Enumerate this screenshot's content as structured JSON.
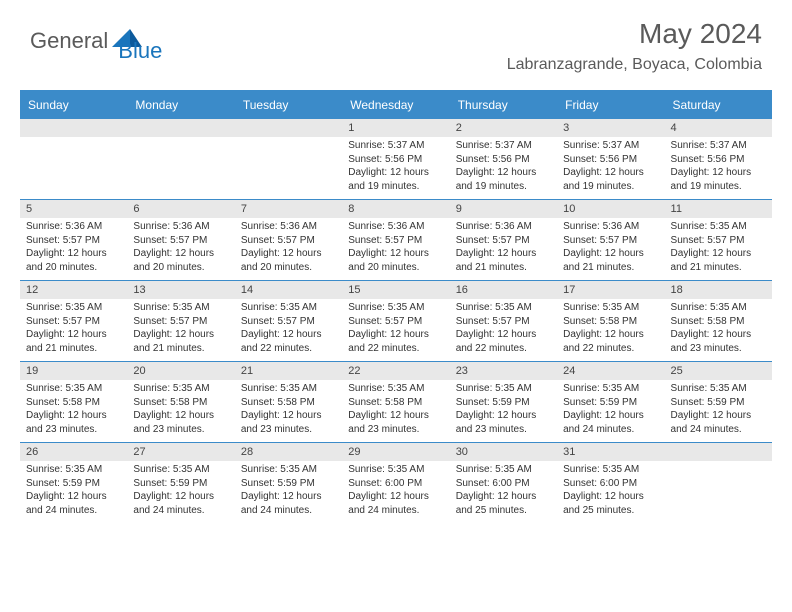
{
  "brand": {
    "part1": "General",
    "part2": "Blue"
  },
  "title": "May 2024",
  "location": "Labranzagrande, Boyaca, Colombia",
  "colors": {
    "header_bg": "#3b8bc9",
    "header_text": "#ffffff",
    "daynum_bg": "#e8e8e8",
    "text": "#333333",
    "brand_gray": "#5a5a5a",
    "brand_blue": "#1a75bc"
  },
  "day_names": [
    "Sunday",
    "Monday",
    "Tuesday",
    "Wednesday",
    "Thursday",
    "Friday",
    "Saturday"
  ],
  "weeks": [
    [
      {
        "n": "",
        "sunrise": "",
        "sunset": "",
        "daylight": ""
      },
      {
        "n": "",
        "sunrise": "",
        "sunset": "",
        "daylight": ""
      },
      {
        "n": "",
        "sunrise": "",
        "sunset": "",
        "daylight": ""
      },
      {
        "n": "1",
        "sunrise": "Sunrise: 5:37 AM",
        "sunset": "Sunset: 5:56 PM",
        "daylight": "Daylight: 12 hours and 19 minutes."
      },
      {
        "n": "2",
        "sunrise": "Sunrise: 5:37 AM",
        "sunset": "Sunset: 5:56 PM",
        "daylight": "Daylight: 12 hours and 19 minutes."
      },
      {
        "n": "3",
        "sunrise": "Sunrise: 5:37 AM",
        "sunset": "Sunset: 5:56 PM",
        "daylight": "Daylight: 12 hours and 19 minutes."
      },
      {
        "n": "4",
        "sunrise": "Sunrise: 5:37 AM",
        "sunset": "Sunset: 5:56 PM",
        "daylight": "Daylight: 12 hours and 19 minutes."
      }
    ],
    [
      {
        "n": "5",
        "sunrise": "Sunrise: 5:36 AM",
        "sunset": "Sunset: 5:57 PM",
        "daylight": "Daylight: 12 hours and 20 minutes."
      },
      {
        "n": "6",
        "sunrise": "Sunrise: 5:36 AM",
        "sunset": "Sunset: 5:57 PM",
        "daylight": "Daylight: 12 hours and 20 minutes."
      },
      {
        "n": "7",
        "sunrise": "Sunrise: 5:36 AM",
        "sunset": "Sunset: 5:57 PM",
        "daylight": "Daylight: 12 hours and 20 minutes."
      },
      {
        "n": "8",
        "sunrise": "Sunrise: 5:36 AM",
        "sunset": "Sunset: 5:57 PM",
        "daylight": "Daylight: 12 hours and 20 minutes."
      },
      {
        "n": "9",
        "sunrise": "Sunrise: 5:36 AM",
        "sunset": "Sunset: 5:57 PM",
        "daylight": "Daylight: 12 hours and 21 minutes."
      },
      {
        "n": "10",
        "sunrise": "Sunrise: 5:36 AM",
        "sunset": "Sunset: 5:57 PM",
        "daylight": "Daylight: 12 hours and 21 minutes."
      },
      {
        "n": "11",
        "sunrise": "Sunrise: 5:35 AM",
        "sunset": "Sunset: 5:57 PM",
        "daylight": "Daylight: 12 hours and 21 minutes."
      }
    ],
    [
      {
        "n": "12",
        "sunrise": "Sunrise: 5:35 AM",
        "sunset": "Sunset: 5:57 PM",
        "daylight": "Daylight: 12 hours and 21 minutes."
      },
      {
        "n": "13",
        "sunrise": "Sunrise: 5:35 AM",
        "sunset": "Sunset: 5:57 PM",
        "daylight": "Daylight: 12 hours and 21 minutes."
      },
      {
        "n": "14",
        "sunrise": "Sunrise: 5:35 AM",
        "sunset": "Sunset: 5:57 PM",
        "daylight": "Daylight: 12 hours and 22 minutes."
      },
      {
        "n": "15",
        "sunrise": "Sunrise: 5:35 AM",
        "sunset": "Sunset: 5:57 PM",
        "daylight": "Daylight: 12 hours and 22 minutes."
      },
      {
        "n": "16",
        "sunrise": "Sunrise: 5:35 AM",
        "sunset": "Sunset: 5:57 PM",
        "daylight": "Daylight: 12 hours and 22 minutes."
      },
      {
        "n": "17",
        "sunrise": "Sunrise: 5:35 AM",
        "sunset": "Sunset: 5:58 PM",
        "daylight": "Daylight: 12 hours and 22 minutes."
      },
      {
        "n": "18",
        "sunrise": "Sunrise: 5:35 AM",
        "sunset": "Sunset: 5:58 PM",
        "daylight": "Daylight: 12 hours and 23 minutes."
      }
    ],
    [
      {
        "n": "19",
        "sunrise": "Sunrise: 5:35 AM",
        "sunset": "Sunset: 5:58 PM",
        "daylight": "Daylight: 12 hours and 23 minutes."
      },
      {
        "n": "20",
        "sunrise": "Sunrise: 5:35 AM",
        "sunset": "Sunset: 5:58 PM",
        "daylight": "Daylight: 12 hours and 23 minutes."
      },
      {
        "n": "21",
        "sunrise": "Sunrise: 5:35 AM",
        "sunset": "Sunset: 5:58 PM",
        "daylight": "Daylight: 12 hours and 23 minutes."
      },
      {
        "n": "22",
        "sunrise": "Sunrise: 5:35 AM",
        "sunset": "Sunset: 5:58 PM",
        "daylight": "Daylight: 12 hours and 23 minutes."
      },
      {
        "n": "23",
        "sunrise": "Sunrise: 5:35 AM",
        "sunset": "Sunset: 5:59 PM",
        "daylight": "Daylight: 12 hours and 23 minutes."
      },
      {
        "n": "24",
        "sunrise": "Sunrise: 5:35 AM",
        "sunset": "Sunset: 5:59 PM",
        "daylight": "Daylight: 12 hours and 24 minutes."
      },
      {
        "n": "25",
        "sunrise": "Sunrise: 5:35 AM",
        "sunset": "Sunset: 5:59 PM",
        "daylight": "Daylight: 12 hours and 24 minutes."
      }
    ],
    [
      {
        "n": "26",
        "sunrise": "Sunrise: 5:35 AM",
        "sunset": "Sunset: 5:59 PM",
        "daylight": "Daylight: 12 hours and 24 minutes."
      },
      {
        "n": "27",
        "sunrise": "Sunrise: 5:35 AM",
        "sunset": "Sunset: 5:59 PM",
        "daylight": "Daylight: 12 hours and 24 minutes."
      },
      {
        "n": "28",
        "sunrise": "Sunrise: 5:35 AM",
        "sunset": "Sunset: 5:59 PM",
        "daylight": "Daylight: 12 hours and 24 minutes."
      },
      {
        "n": "29",
        "sunrise": "Sunrise: 5:35 AM",
        "sunset": "Sunset: 6:00 PM",
        "daylight": "Daylight: 12 hours and 24 minutes."
      },
      {
        "n": "30",
        "sunrise": "Sunrise: 5:35 AM",
        "sunset": "Sunset: 6:00 PM",
        "daylight": "Daylight: 12 hours and 25 minutes."
      },
      {
        "n": "31",
        "sunrise": "Sunrise: 5:35 AM",
        "sunset": "Sunset: 6:00 PM",
        "daylight": "Daylight: 12 hours and 25 minutes."
      },
      {
        "n": "",
        "sunrise": "",
        "sunset": "",
        "daylight": ""
      }
    ]
  ]
}
